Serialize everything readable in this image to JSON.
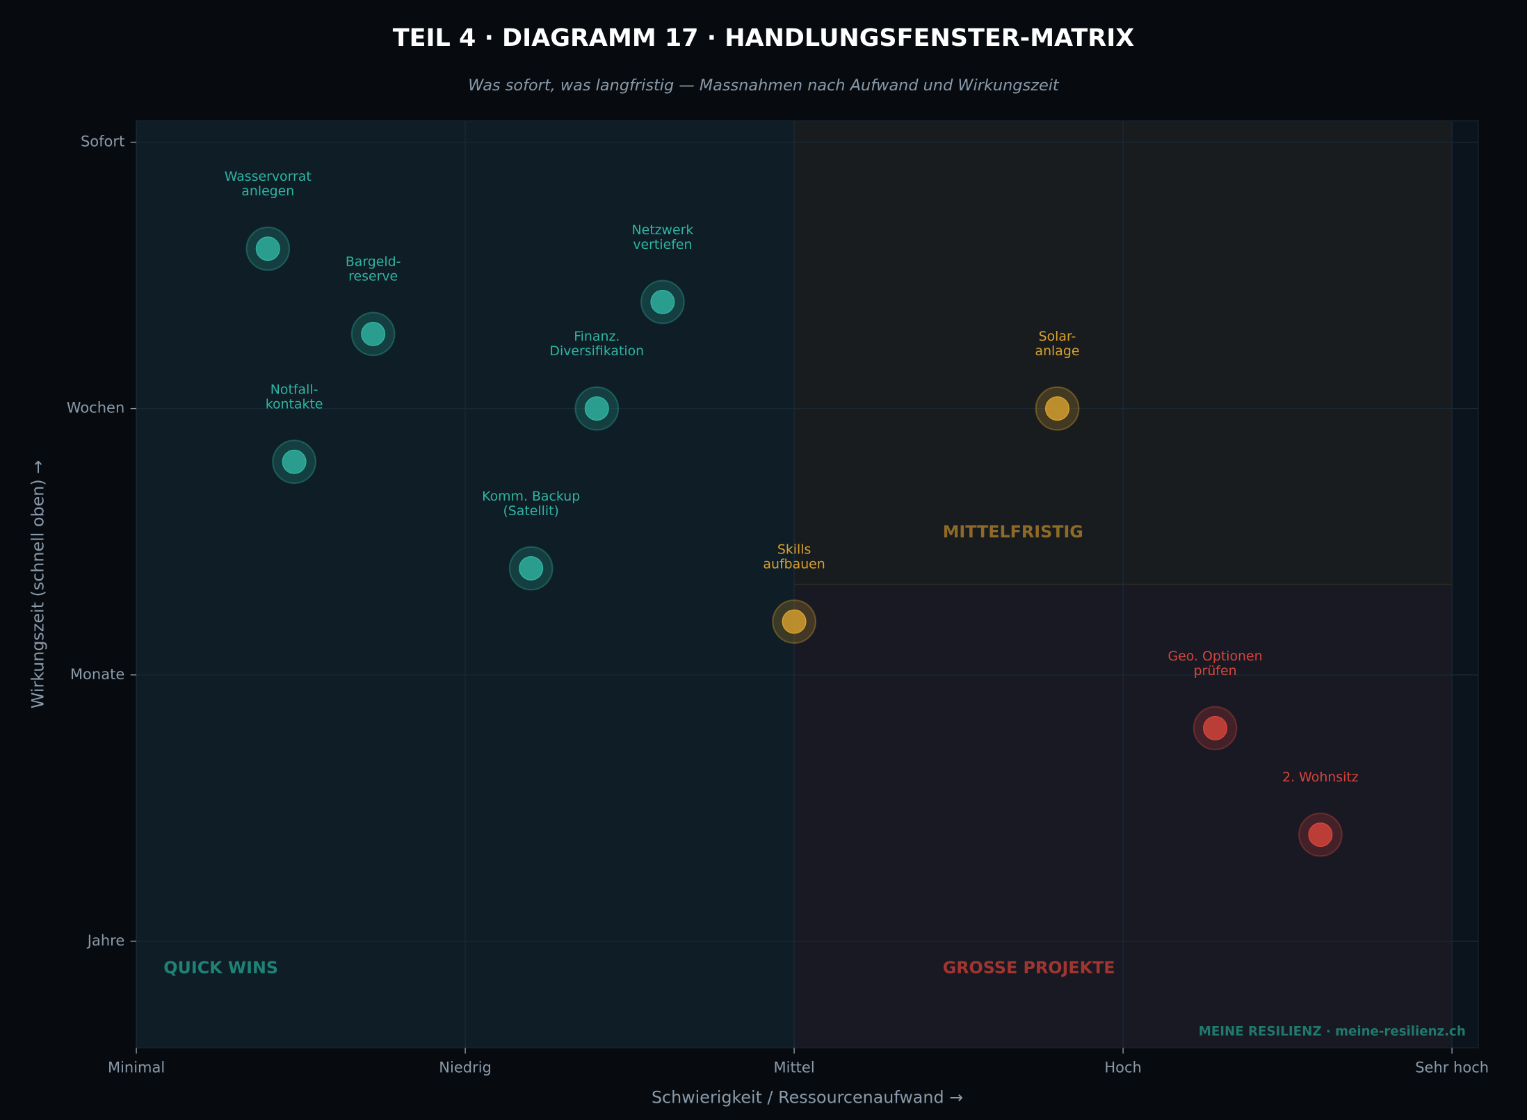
{
  "chart_data": {
    "type": "scatter",
    "title": "TEIL 4 · DIAGRAMM 17  ·  HANDLUNGSFENSTER-MATRIX",
    "subtitle": "Was sofort, was langfristig — Massnahmen nach Aufwand und Wirkungszeit",
    "x_label": "Schwierigkeit / Ressourcenaufwand  →",
    "y_label": "Wirkungszeit (schnell oben)  →",
    "watermark": "MEINE RESILIENZ  ·  meine-resilienz.ch",
    "xlim": [
      0,
      4.08
    ],
    "ylim": [
      -0.4,
      3.08
    ],
    "xticks": [
      {
        "value": 0,
        "label": "Minimal"
      },
      {
        "value": 1,
        "label": "Niedrig"
      },
      {
        "value": 2,
        "label": "Mittel"
      },
      {
        "value": 3,
        "label": "Hoch"
      },
      {
        "value": 4,
        "label": "Sehr hoch"
      }
    ],
    "yticks": [
      {
        "value": 0,
        "label": "Jahre"
      },
      {
        "value": 1,
        "label": "Monate"
      },
      {
        "value": 2,
        "label": "Wochen"
      },
      {
        "value": 3,
        "label": "Sofort"
      }
    ],
    "grid": true,
    "series": [
      {
        "name": "QUICK WINS",
        "color": "#2fb5a2",
        "x": [
          0.4,
          0.72,
          0.48,
          1.6,
          1.4,
          1.2
        ],
        "values": [
          2.6,
          2.28,
          1.8,
          2.4,
          2.0,
          1.4
        ],
        "labels": [
          [
            "Wasservorrat",
            "anlegen"
          ],
          [
            "Bargeld-",
            "reserve"
          ],
          [
            "Notfall-",
            "kontakte"
          ],
          [
            "Netzwerk",
            "vertiefen"
          ],
          [
            "Finanz.",
            "Diversifikation"
          ],
          [
            "Komm. Backup",
            "(Satellit)"
          ]
        ]
      },
      {
        "name": "MITTELFRISTIG",
        "color": "#d9a22e",
        "x": [
          2.8,
          2.0
        ],
        "values": [
          2.0,
          1.2
        ],
        "labels": [
          [
            "Solar-",
            "anlage"
          ],
          [
            "Skills",
            "aufbauen"
          ]
        ]
      },
      {
        "name": "GROSSE PROJEKTE",
        "color": "#d8453b",
        "x": [
          3.28,
          3.6
        ],
        "values": [
          0.8,
          0.4
        ],
        "labels": [
          [
            "Geo. Optionen",
            "prüfen"
          ],
          [
            "2. Wohnsitz"
          ]
        ]
      }
    ]
  }
}
